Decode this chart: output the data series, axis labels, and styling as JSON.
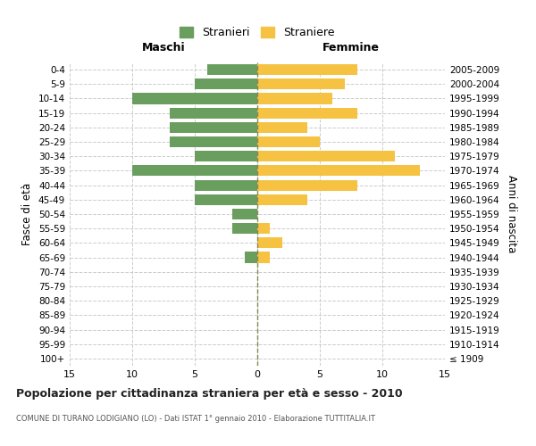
{
  "age_groups": [
    "100+",
    "95-99",
    "90-94",
    "85-89",
    "80-84",
    "75-79",
    "70-74",
    "65-69",
    "60-64",
    "55-59",
    "50-54",
    "45-49",
    "40-44",
    "35-39",
    "30-34",
    "25-29",
    "20-24",
    "15-19",
    "10-14",
    "5-9",
    "0-4"
  ],
  "birth_years": [
    "≤ 1909",
    "1910-1914",
    "1915-1919",
    "1920-1924",
    "1925-1929",
    "1930-1934",
    "1935-1939",
    "1940-1944",
    "1945-1949",
    "1950-1954",
    "1955-1959",
    "1960-1964",
    "1965-1969",
    "1970-1974",
    "1975-1979",
    "1980-1984",
    "1985-1989",
    "1990-1994",
    "1995-1999",
    "2000-2004",
    "2005-2009"
  ],
  "maschi": [
    0,
    0,
    0,
    0,
    0,
    0,
    0,
    1,
    0,
    2,
    2,
    5,
    5,
    10,
    5,
    7,
    7,
    7,
    10,
    5,
    4
  ],
  "femmine": [
    0,
    0,
    0,
    0,
    0,
    0,
    0,
    1,
    2,
    1,
    0,
    4,
    8,
    13,
    11,
    5,
    4,
    8,
    6,
    7,
    8
  ],
  "male_color": "#6a9e5e",
  "female_color": "#f5c242",
  "title": "Popolazione per cittadinanza straniera per età e sesso - 2010",
  "subtitle": "COMUNE DI TURANO LODIGIANO (LO) - Dati ISTAT 1° gennaio 2010 - Elaborazione TUTTITALIA.IT",
  "ylabel_left": "Fasce di età",
  "ylabel_right": "Anni di nascita",
  "header_maschi": "Maschi",
  "header_femmine": "Femmine",
  "legend_maschi": "Stranieri",
  "legend_femmine": "Straniere",
  "xlim": 15,
  "background_color": "#ffffff",
  "grid_color": "#cccccc"
}
